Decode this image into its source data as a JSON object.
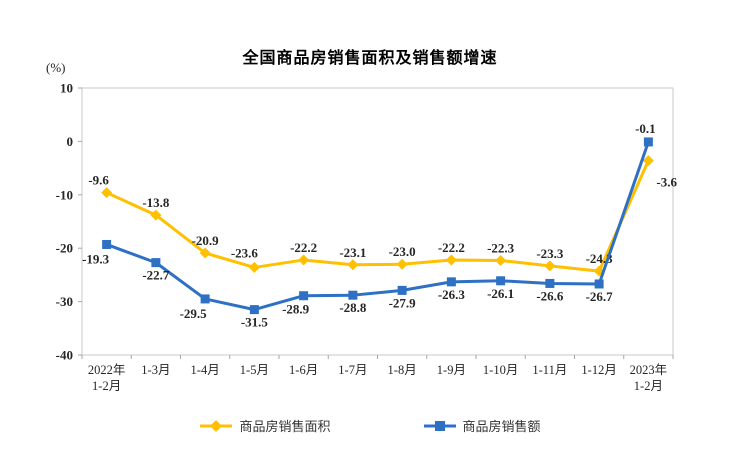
{
  "chart_data": {
    "type": "line",
    "title": "全国商品房销售面积及销售额增速",
    "ylabel": "(%)",
    "xlabel": "",
    "ylim": [
      -40,
      10
    ],
    "yticks": [
      10,
      0,
      -10,
      -20,
      -30,
      -40
    ],
    "grid": false,
    "legend_position": "bottom",
    "categories": [
      "2022年\n1-2月",
      "1-3月",
      "1-4月",
      "1-5月",
      "1-6月",
      "1-7月",
      "1-8月",
      "1-9月",
      "1-10月",
      "1-11月",
      "1-12月",
      "2023年\n1-2月"
    ],
    "series": [
      {
        "name": "商品房销售面积",
        "color": "#FFC000",
        "marker": "diamond",
        "values": [
          -9.6,
          -13.8,
          -20.9,
          -23.6,
          -22.2,
          -23.1,
          -23.0,
          -22.2,
          -22.3,
          -23.3,
          -24.3,
          -3.6
        ]
      },
      {
        "name": "商品房销售额",
        "color": "#2E70C4",
        "marker": "square",
        "values": [
          -19.3,
          -22.7,
          -29.5,
          -31.5,
          -28.9,
          -28.8,
          -27.9,
          -26.3,
          -26.1,
          -26.6,
          -26.7,
          -0.1
        ]
      }
    ],
    "colors": {
      "frame": "#C9C9C9",
      "tick": "#A6A6A6",
      "label_text": "#262626"
    }
  }
}
